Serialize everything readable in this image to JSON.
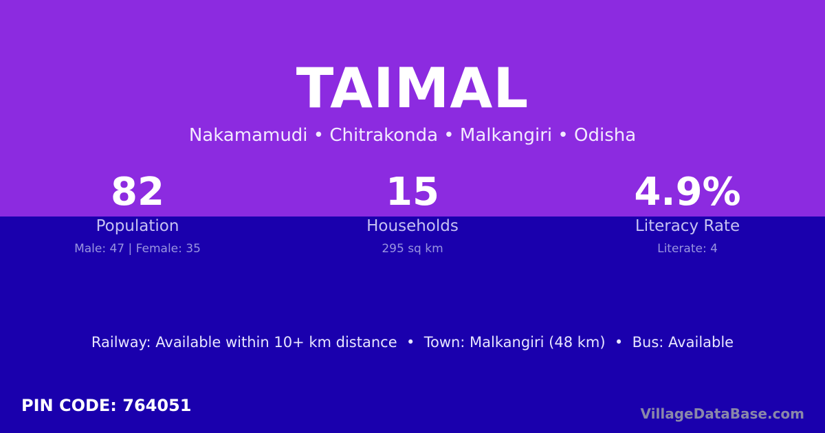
{
  "title": "TAIMAL",
  "breadcrumb": "Nakamamudi • Chitrakonda • Malkangiri • Odisha",
  "stats": [
    {
      "value": "82",
      "label": "Population",
      "detail": "Male: 47 | Female: 35"
    },
    {
      "value": "15",
      "label": "Households",
      "detail": "295 sq km"
    },
    {
      "value": "4.9%",
      "label": "Literacy Rate",
      "detail": "Literate: 4"
    }
  ],
  "transport": "Railway: Available within 10+ km distance  •  Town: Malkangiri (48 km)  •  Bus: Available",
  "pin": "PIN CODE: 764051",
  "brand": "VillageDataBase.com",
  "colors": {
    "top": "#8c2be0",
    "bottom": "#1a00ad"
  }
}
